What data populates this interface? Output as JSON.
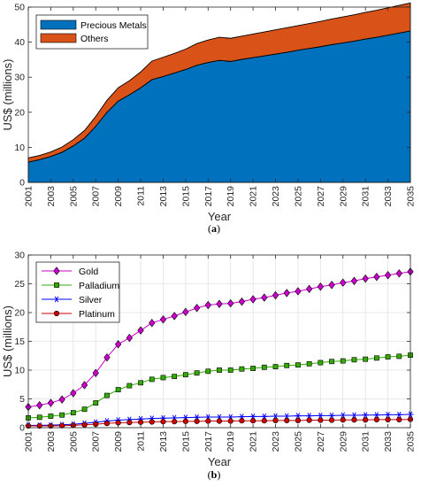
{
  "chart_data": [
    {
      "panel": "(a)",
      "type": "area",
      "stacked": true,
      "xlabel": "Year",
      "ylabel": "US$ (millions)",
      "xlim": [
        2001,
        2035
      ],
      "ylim": [
        0,
        50
      ],
      "yticks": [
        0,
        10,
        20,
        30,
        40,
        50
      ],
      "xticks": [
        2001,
        2003,
        2005,
        2007,
        2009,
        2011,
        2013,
        2015,
        2017,
        2019,
        2021,
        2023,
        2025,
        2027,
        2029,
        2031,
        2033,
        2035
      ],
      "grid": false,
      "legend_position": "top-left",
      "x": [
        2001,
        2002,
        2003,
        2004,
        2005,
        2006,
        2007,
        2008,
        2009,
        2010,
        2011,
        2012,
        2013,
        2014,
        2015,
        2016,
        2017,
        2018,
        2019,
        2020,
        2021,
        2022,
        2023,
        2024,
        2025,
        2026,
        2027,
        2028,
        2029,
        2030,
        2031,
        2032,
        2033,
        2034,
        2035
      ],
      "series": [
        {
          "name": "Precious Metals",
          "color": "#0072BD",
          "values": [
            5.8,
            6.5,
            7.4,
            8.6,
            10.4,
            12.6,
            16.0,
            20.0,
            23.2,
            25.0,
            27.0,
            29.3,
            30.2,
            31.2,
            32.2,
            33.4,
            34.2,
            34.8,
            34.5,
            35.1,
            35.6,
            36.1,
            36.6,
            37.1,
            37.7,
            38.2,
            38.7,
            39.3,
            39.8,
            40.3,
            40.9,
            41.4,
            42.0,
            42.6,
            43.2
          ]
        },
        {
          "name": "Others",
          "color": "#D95319",
          "values": [
            1.2,
            1.2,
            1.3,
            1.5,
            1.8,
            2.2,
            2.8,
            3.4,
            3.8,
            4.0,
            4.5,
            5.3,
            5.5,
            5.6,
            5.8,
            6.2,
            6.4,
            6.6,
            6.6,
            6.6,
            6.7,
            6.8,
            6.9,
            7.0,
            7.0,
            7.1,
            7.2,
            7.3,
            7.4,
            7.5,
            7.6,
            7.7,
            7.8,
            7.9,
            8.0
          ]
        }
      ]
    },
    {
      "panel": "(b)",
      "type": "line",
      "xlabel": "Year",
      "ylabel": "US$ (millions)",
      "xlim": [
        2001,
        2035
      ],
      "ylim": [
        0,
        30
      ],
      "yticks": [
        0,
        5,
        10,
        15,
        20,
        25,
        30
      ],
      "xticks": [
        2001,
        2003,
        2005,
        2007,
        2009,
        2011,
        2013,
        2015,
        2017,
        2019,
        2021,
        2023,
        2025,
        2027,
        2029,
        2031,
        2033,
        2035
      ],
      "grid": true,
      "legend_position": "top-left",
      "x": [
        2001,
        2002,
        2003,
        2004,
        2005,
        2006,
        2007,
        2008,
        2009,
        2010,
        2011,
        2012,
        2013,
        2014,
        2015,
        2016,
        2017,
        2018,
        2019,
        2020,
        2021,
        2022,
        2023,
        2024,
        2025,
        2026,
        2027,
        2028,
        2029,
        2030,
        2031,
        2032,
        2033,
        2034,
        2035
      ],
      "series": [
        {
          "name": "Gold",
          "color": "#CC00CC",
          "marker": "diamond",
          "values": [
            3.6,
            3.9,
            4.3,
            4.9,
            6.0,
            7.4,
            9.5,
            12.2,
            14.5,
            15.6,
            16.9,
            18.2,
            18.8,
            19.4,
            20.1,
            20.8,
            21.3,
            21.5,
            21.6,
            21.9,
            22.3,
            22.6,
            23.0,
            23.4,
            23.7,
            24.1,
            24.5,
            24.8,
            25.2,
            25.5,
            25.9,
            26.2,
            26.5,
            26.8,
            27.1
          ]
        },
        {
          "name": "Palladium",
          "color": "#33AA00",
          "marker": "square",
          "values": [
            1.7,
            1.8,
            2.0,
            2.2,
            2.6,
            3.2,
            4.3,
            5.6,
            6.6,
            7.3,
            7.8,
            8.4,
            8.7,
            8.9,
            9.2,
            9.5,
            9.8,
            10.0,
            10.0,
            10.2,
            10.3,
            10.5,
            10.6,
            10.8,
            10.9,
            11.1,
            11.3,
            11.5,
            11.6,
            11.8,
            11.9,
            12.1,
            12.3,
            12.4,
            12.6
          ]
        },
        {
          "name": "Silver",
          "color": "#0000FF",
          "marker": "star",
          "values": [
            0.4,
            0.4,
            0.45,
            0.5,
            0.6,
            0.75,
            0.95,
            1.15,
            1.3,
            1.4,
            1.5,
            1.6,
            1.65,
            1.7,
            1.75,
            1.8,
            1.85,
            1.85,
            1.85,
            1.9,
            1.95,
            1.95,
            2.0,
            2.0,
            2.05,
            2.05,
            2.1,
            2.1,
            2.15,
            2.15,
            2.2,
            2.2,
            2.25,
            2.25,
            2.3
          ]
        },
        {
          "name": "Platinum",
          "color": "#CC0000",
          "marker": "circle",
          "values": [
            0.3,
            0.3,
            0.3,
            0.35,
            0.4,
            0.5,
            0.6,
            0.75,
            0.85,
            0.9,
            0.95,
            1.0,
            1.05,
            1.05,
            1.1,
            1.1,
            1.15,
            1.15,
            1.15,
            1.2,
            1.2,
            1.2,
            1.25,
            1.25,
            1.25,
            1.3,
            1.3,
            1.3,
            1.35,
            1.35,
            1.35,
            1.4,
            1.4,
            1.4,
            1.45
          ]
        }
      ]
    }
  ]
}
